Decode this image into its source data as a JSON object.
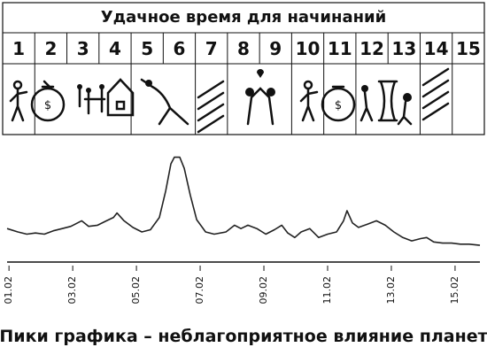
{
  "calendar": {
    "title": "Удачное время для начинаний",
    "days": [
      1,
      2,
      3,
      4,
      5,
      6,
      7,
      8,
      9,
      10,
      11,
      12,
      13,
      14,
      15
    ]
  },
  "chart_data": {
    "type": "line",
    "caption": "Пики графика – неблагоприятное влияние планет",
    "series": [
      {
        "color": "#222222",
        "x": [
          0.94,
          1.28,
          1.56,
          1.83,
          2.11,
          2.39,
          2.67,
          2.94,
          3.28,
          3.5,
          3.78,
          4.06,
          4.28,
          4.39,
          4.61,
          4.89,
          5.17,
          5.44,
          5.72,
          5.92,
          6.08,
          6.19,
          6.36,
          6.5,
          6.69,
          6.89,
          7.17,
          7.44,
          7.81,
          8.08,
          8.28,
          8.5,
          8.78,
          9.06,
          9.33,
          9.56,
          9.75,
          9.97,
          10.17,
          10.44,
          10.72,
          11,
          11.28,
          11.5,
          11.61,
          11.78,
          11.97,
          12.25,
          12.53,
          12.81,
          13.08,
          13.36,
          13.64,
          13.92,
          14.11,
          14.33,
          14.61,
          14.89,
          15.17,
          15.44,
          15.78
        ],
        "values": [
          30,
          27,
          25,
          26,
          25,
          28,
          30,
          32,
          37,
          32,
          33,
          37,
          40,
          44,
          37,
          31,
          27,
          29,
          40,
          64,
          88,
          94,
          94,
          84,
          60,
          38,
          27,
          25,
          27,
          33,
          30,
          33,
          30,
          25,
          29,
          33,
          26,
          22,
          27,
          30,
          22,
          25,
          27,
          37,
          46,
          35,
          31,
          34,
          37,
          33,
          27,
          22,
          19,
          21,
          22,
          18,
          17,
          17,
          16,
          16,
          15
        ]
      }
    ],
    "xlim": [
      0.94,
      15.78
    ],
    "ylim": [
      0,
      100
    ],
    "xticks": [
      {
        "value": 1,
        "label": "01.02"
      },
      {
        "value": 3,
        "label": "03.02"
      },
      {
        "value": 5,
        "label": "05.02"
      },
      {
        "value": 7,
        "label": "07.02"
      },
      {
        "value": 9,
        "label": "09.02"
      },
      {
        "value": 11,
        "label": "11.02"
      },
      {
        "value": 13,
        "label": "13.02"
      },
      {
        "value": 15,
        "label": "15.02"
      }
    ]
  }
}
